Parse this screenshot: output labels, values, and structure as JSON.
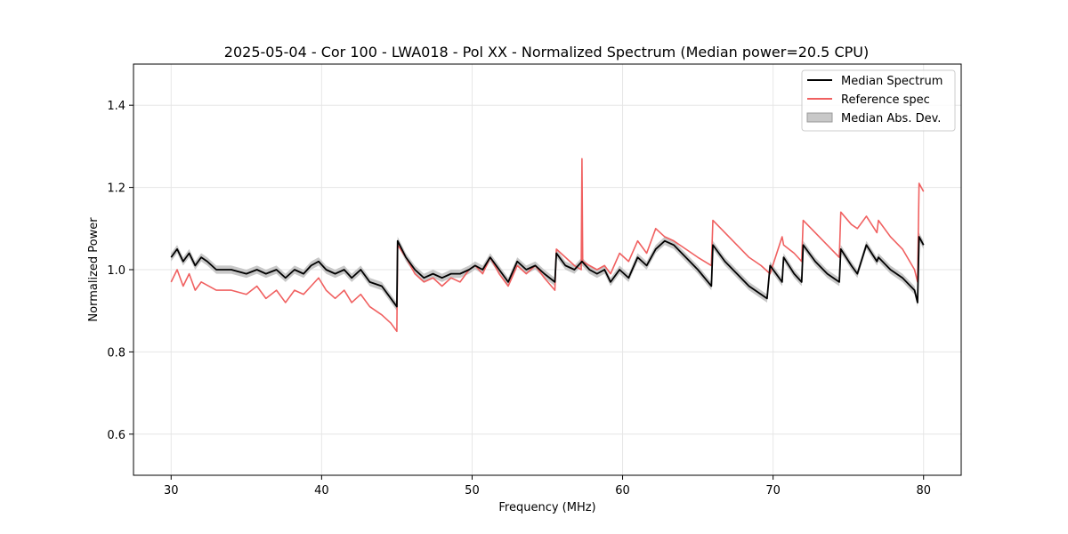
{
  "chart_data": {
    "type": "line",
    "title": "2025-05-04 - Cor 100 - LWA018 - Pol XX - Normalized Spectrum (Median power=20.5 CPU)",
    "xlabel": "Frequency (MHz)",
    "ylabel": "Normalized Power",
    "xlim": [
      27.5,
      82.5
    ],
    "ylim": [
      0.5,
      1.5
    ],
    "xticks": [
      30,
      40,
      50,
      60,
      70,
      80
    ],
    "yticks": [
      0.6,
      0.8,
      1.0,
      1.2,
      1.4
    ],
    "xtick_labels": [
      "30",
      "40",
      "50",
      "60",
      "70",
      "80"
    ],
    "ytick_labels": [
      "0.6",
      "0.8",
      "1.0",
      "1.2",
      "1.4"
    ],
    "grid": true,
    "legend_position": "top-right",
    "legend": [
      "Median Spectrum",
      "Reference spec",
      "Median Abs. Dev."
    ],
    "series": [
      {
        "name": "Median Spectrum",
        "color": "#000000",
        "x": [
          30,
          30.4,
          30.8,
          31.2,
          31.6,
          32.0,
          32.4,
          33.0,
          34.0,
          35.0,
          35.7,
          36.3,
          37.0,
          37.6,
          38.2,
          38.8,
          39.3,
          39.8,
          40.3,
          40.9,
          41.5,
          42.0,
          42.6,
          43.2,
          44.0,
          44.6,
          45.0,
          45.05,
          45.6,
          46.2,
          46.8,
          47.4,
          48.0,
          48.6,
          49.2,
          49.8,
          50.2,
          50.7,
          51.2,
          51.8,
          52.4,
          53.0,
          53.6,
          54.2,
          54.8,
          55.5,
          55.6,
          56.2,
          56.8,
          57.3,
          57.8,
          58.3,
          58.8,
          59.2,
          59.8,
          60.4,
          61.0,
          61.6,
          62.2,
          62.8,
          63.4,
          64.2,
          65.0,
          65.9,
          66.0,
          66.8,
          67.6,
          68.4,
          69.2,
          69.6,
          69.8,
          70.6,
          70.7,
          71.4,
          71.9,
          72.0,
          72.8,
          73.6,
          74.4,
          74.5,
          75.2,
          75.6,
          76.2,
          76.9,
          77.0,
          77.8,
          78.6,
          79.4,
          79.6,
          79.7,
          80.0
        ],
        "values": [
          1.03,
          1.05,
          1.02,
          1.04,
          1.01,
          1.03,
          1.02,
          1.0,
          1.0,
          0.99,
          1.0,
          0.99,
          1.0,
          0.98,
          1.0,
          0.99,
          1.01,
          1.02,
          1.0,
          0.99,
          1.0,
          0.98,
          1.0,
          0.97,
          0.96,
          0.93,
          0.91,
          1.07,
          1.03,
          1.0,
          0.98,
          0.99,
          0.98,
          0.99,
          0.99,
          1.0,
          1.01,
          1.0,
          1.03,
          1.0,
          0.97,
          1.02,
          1.0,
          1.01,
          0.99,
          0.97,
          1.04,
          1.01,
          1.0,
          1.02,
          1.0,
          0.99,
          1.0,
          0.97,
          1.0,
          0.98,
          1.03,
          1.01,
          1.05,
          1.07,
          1.06,
          1.03,
          1.0,
          0.96,
          1.06,
          1.02,
          0.99,
          0.96,
          0.94,
          0.93,
          1.01,
          0.97,
          1.03,
          0.99,
          0.97,
          1.06,
          1.02,
          0.99,
          0.97,
          1.05,
          1.01,
          0.99,
          1.06,
          1.02,
          1.03,
          1.0,
          0.98,
          0.95,
          0.92,
          1.08,
          1.06
        ]
      },
      {
        "name": "Reference spec",
        "color": "#f06060",
        "x": [
          30,
          30.4,
          30.8,
          31.2,
          31.6,
          32.0,
          32.5,
          33.0,
          34.0,
          35.0,
          35.7,
          36.3,
          37.0,
          37.6,
          38.2,
          38.8,
          39.3,
          39.8,
          40.3,
          40.9,
          41.5,
          42.0,
          42.6,
          43.2,
          44.0,
          44.6,
          45.0,
          45.05,
          45.6,
          46.2,
          46.8,
          47.4,
          48.0,
          48.6,
          49.2,
          49.8,
          50.2,
          50.7,
          51.2,
          51.8,
          52.4,
          53.0,
          53.6,
          54.2,
          54.8,
          55.5,
          55.6,
          56.2,
          56.8,
          57.25,
          57.3,
          57.35,
          57.8,
          58.3,
          58.8,
          59.2,
          59.8,
          60.4,
          61.0,
          61.6,
          62.2,
          62.8,
          63.4,
          64.2,
          65.0,
          65.9,
          66.0,
          66.8,
          67.6,
          68.4,
          69.2,
          69.8,
          70.6,
          70.7,
          71.4,
          71.9,
          72.0,
          72.8,
          73.6,
          74.4,
          74.5,
          75.2,
          75.6,
          76.2,
          76.9,
          77.0,
          77.8,
          78.6,
          79.4,
          79.6,
          79.7,
          80.0
        ],
        "values": [
          0.97,
          1.0,
          0.96,
          0.99,
          0.95,
          0.97,
          0.96,
          0.95,
          0.95,
          0.94,
          0.96,
          0.93,
          0.95,
          0.92,
          0.95,
          0.94,
          0.96,
          0.98,
          0.95,
          0.93,
          0.95,
          0.92,
          0.94,
          0.91,
          0.89,
          0.87,
          0.85,
          1.06,
          1.03,
          0.99,
          0.97,
          0.98,
          0.96,
          0.98,
          0.97,
          1.0,
          1.01,
          0.99,
          1.03,
          0.99,
          0.96,
          1.01,
          0.99,
          1.01,
          0.98,
          0.95,
          1.05,
          1.03,
          1.01,
          1.0,
          1.27,
          1.02,
          1.01,
          1.0,
          1.01,
          0.99,
          1.04,
          1.02,
          1.07,
          1.04,
          1.1,
          1.08,
          1.07,
          1.05,
          1.03,
          1.01,
          1.12,
          1.09,
          1.06,
          1.03,
          1.01,
          0.99,
          1.08,
          1.06,
          1.04,
          1.02,
          1.12,
          1.09,
          1.06,
          1.03,
          1.14,
          1.11,
          1.1,
          1.13,
          1.09,
          1.12,
          1.08,
          1.05,
          1.0,
          0.97,
          1.21,
          1.19
        ]
      }
    ],
    "band": {
      "name": "Median Abs. Dev.",
      "color": "#c8c8c8",
      "width": 0.01
    }
  }
}
